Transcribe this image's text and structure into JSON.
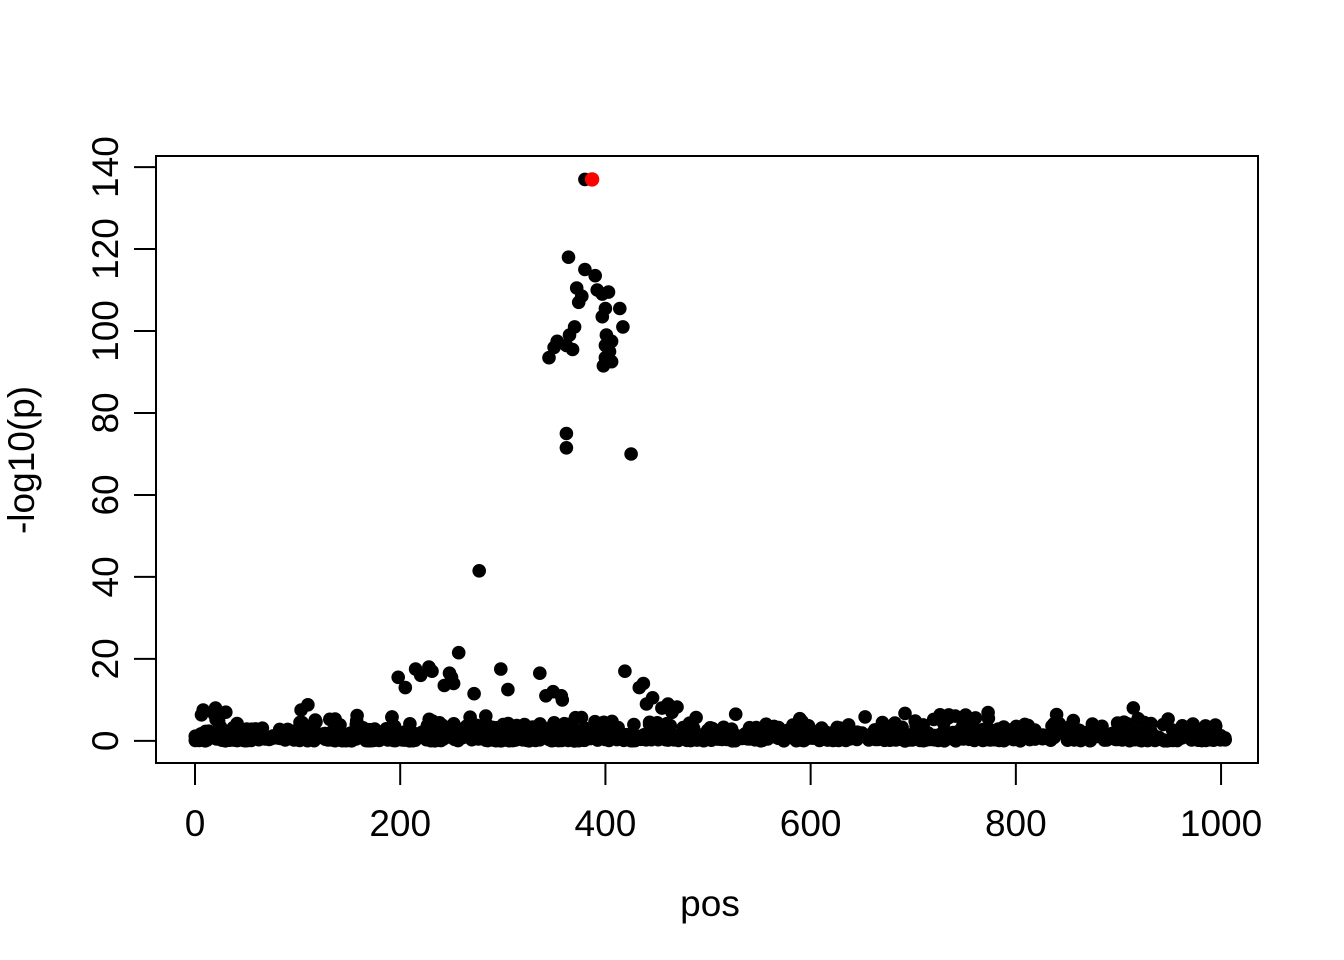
{
  "chart_data": {
    "type": "scatter",
    "title": "",
    "xlabel": "pos",
    "ylabel": "-log10(p)",
    "xlim": [
      -38,
      1036
    ],
    "ylim": [
      -5.4,
      142.7
    ],
    "x_ticks": [
      0,
      200,
      400,
      600,
      800,
      1000
    ],
    "y_ticks": [
      0,
      20,
      40,
      60,
      80,
      100,
      120,
      140
    ],
    "grid": false,
    "legend": "none",
    "point_color": "#000000",
    "highlight_color": "#FF0000",
    "background_color": "#FFFFFF",
    "point_radius": 6.8,
    "highlight_radius": 7.2,
    "highlight_point": {
      "x": 387,
      "y": 137
    },
    "point_behind_highlight": {
      "x": 380,
      "y": 137
    },
    "peak_points": [
      [
        364,
        118
      ],
      [
        380,
        115
      ],
      [
        390,
        113.5
      ],
      [
        372,
        110.5
      ],
      [
        392,
        110
      ],
      [
        403,
        109.5
      ],
      [
        397,
        109
      ],
      [
        377,
        108.5
      ],
      [
        374,
        107
      ],
      [
        400,
        105.5
      ],
      [
        414,
        105.5
      ],
      [
        397,
        103.5
      ],
      [
        417,
        101
      ],
      [
        370,
        101
      ],
      [
        401,
        99
      ],
      [
        365,
        99
      ],
      [
        406,
        97.5
      ],
      [
        353,
        97.5
      ],
      [
        362,
        96.5
      ],
      [
        400,
        96.5
      ],
      [
        350,
        96
      ],
      [
        368,
        95.5
      ],
      [
        404,
        95
      ],
      [
        400,
        93.5
      ],
      [
        345,
        93.5
      ],
      [
        406,
        92.5
      ],
      [
        398,
        91.5
      ],
      [
        362,
        75
      ],
      [
        362,
        71.5
      ],
      [
        425,
        70
      ],
      [
        277,
        41.5
      ]
    ],
    "mid_points": [
      [
        257,
        21.5
      ],
      [
        228,
        18
      ],
      [
        215,
        17.5
      ],
      [
        231,
        17
      ],
      [
        298,
        17.5
      ],
      [
        419,
        17
      ],
      [
        336,
        16.5
      ],
      [
        248,
        16.5
      ],
      [
        220,
        16
      ],
      [
        198,
        15.5
      ],
      [
        250,
        15.5
      ],
      [
        252,
        14
      ],
      [
        437,
        14
      ],
      [
        243,
        13.5
      ],
      [
        433,
        13
      ],
      [
        205,
        13
      ],
      [
        305,
        12.5
      ],
      [
        272,
        11.5
      ],
      [
        349,
        12
      ],
      [
        342,
        11
      ],
      [
        357,
        11
      ],
      [
        446,
        10.5
      ],
      [
        358,
        10
      ],
      [
        440,
        9
      ],
      [
        461,
        9
      ],
      [
        110,
        8.8
      ],
      [
        455,
        8
      ],
      [
        20,
        8
      ],
      [
        8,
        7.5
      ],
      [
        30,
        7
      ],
      [
        527,
        6.5
      ],
      [
        692,
        6.7
      ],
      [
        751,
        6.3
      ]
    ],
    "noise_band": {
      "description": "dense baseline of background points spanning full x range with -log10(p) mostly between 0 and ~8",
      "count": 1080,
      "x_min": 0,
      "x_max": 1005,
      "y_exp_scale": 1.5,
      "y_max": 8.8,
      "seed": 987654321
    }
  }
}
